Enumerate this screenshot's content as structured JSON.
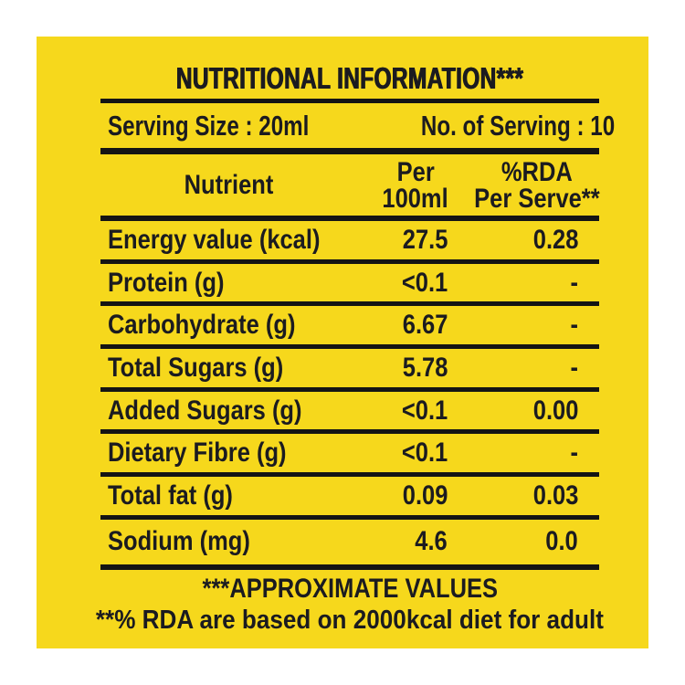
{
  "label": {
    "title": "NUTRITIONAL INFORMATION***",
    "serving": {
      "size_label": "Serving Size : 20ml",
      "count_label": "No. of Serving : 10"
    },
    "table": {
      "headers": {
        "nutrient": "Nutrient",
        "per100_line1": "Per",
        "per100_line2": "100ml",
        "rda_line1": "%RDA",
        "rda_line2": "Per Serve**"
      },
      "rows": [
        {
          "nutrient": "Energy value (kcal)",
          "per_100ml": "27.5",
          "rda_per_serve": "0.28"
        },
        {
          "nutrient": "Protein (g)",
          "per_100ml": "<0.1",
          "rda_per_serve": "-"
        },
        {
          "nutrient": "Carbohydrate (g)",
          "per_100ml": "6.67",
          "rda_per_serve": "-"
        },
        {
          "nutrient": "Total Sugars (g)",
          "per_100ml": "5.78",
          "rda_per_serve": "-"
        },
        {
          "nutrient": "Added Sugars (g)",
          "per_100ml": "<0.1",
          "rda_per_serve": "0.00"
        },
        {
          "nutrient": "Dietary Fibre (g)",
          "per_100ml": "<0.1",
          "rda_per_serve": "-"
        },
        {
          "nutrient": "Total fat (g)",
          "per_100ml": "0.09",
          "rda_per_serve": "0.03"
        },
        {
          "nutrient": "Sodium (mg)",
          "per_100ml": "4.6",
          "rda_per_serve": "0.0"
        }
      ]
    },
    "footnotes": [
      "***APPROXIMATE VALUES",
      "**% RDA are based on 2000kcal diet for adult"
    ],
    "colors": {
      "panel_background": "#F6D81C",
      "page_background": "#FFFFFF",
      "text": "#1B1B20",
      "rule": "#141414"
    }
  }
}
